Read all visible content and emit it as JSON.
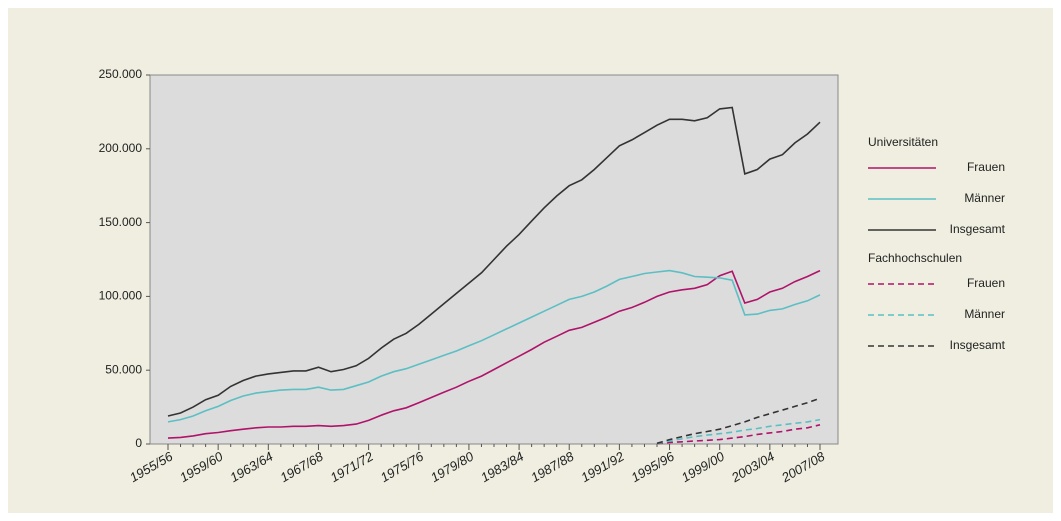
{
  "chart_data": {
    "type": "line",
    "categories": [
      "1955/56",
      null,
      null,
      null,
      "1959/60",
      null,
      null,
      null,
      "1963/64",
      null,
      null,
      null,
      "1967/68",
      null,
      null,
      null,
      "1971/72",
      null,
      null,
      null,
      "1975/76",
      null,
      null,
      null,
      "1979/80",
      null,
      null,
      null,
      "1983/84",
      null,
      null,
      null,
      "1987/88",
      null,
      null,
      null,
      "1991/92",
      null,
      null,
      null,
      "1995/96",
      null,
      null,
      null,
      "1999/00",
      null,
      null,
      null,
      "2003/04",
      null,
      null,
      null,
      "2007/08"
    ],
    "ylim": [
      0,
      250000
    ],
    "yticks": [
      0,
      {
        "value": 50000,
        "label": "50.000"
      },
      {
        "value": 100000,
        "label": "100.000"
      },
      {
        "value": 150000,
        "label": "150.000"
      },
      {
        "value": 200000,
        "label": "200.000"
      },
      {
        "value": 250000,
        "label": "250.000"
      }
    ],
    "series": [
      {
        "group": "Universitäten",
        "name": "Frauen",
        "color": "#b0136a",
        "dashed": false,
        "values": [
          4000,
          4500,
          5500,
          7000,
          7800,
          9000,
          10000,
          11000,
          11500,
          11500,
          12000,
          12000,
          12500,
          12000,
          12500,
          13500,
          16000,
          19500,
          22500,
          24500,
          28000,
          31500,
          35000,
          38500,
          42500,
          46000,
          50500,
          55000,
          59500,
          64000,
          69000,
          73000,
          77000,
          79000,
          82500,
          86000,
          90000,
          92500,
          96000,
          100000,
          103000,
          104500,
          105500,
          108000,
          114000,
          117000,
          95500,
          98000,
          103000,
          105500,
          110000,
          113500,
          117500
        ]
      },
      {
        "group": "Universitäten",
        "name": "Männer",
        "color": "#5bbfc4",
        "dashed": false,
        "values": [
          15000,
          16500,
          19000,
          22500,
          25500,
          29500,
          32500,
          34500,
          35500,
          36500,
          37000,
          37000,
          38500,
          36500,
          37000,
          39500,
          42000,
          46000,
          49000,
          51000,
          54000,
          57000,
          60000,
          63000,
          66500,
          70000,
          74000,
          78000,
          82000,
          86000,
          90000,
          94000,
          98000,
          100000,
          103000,
          107000,
          111500,
          113500,
          115500,
          116500,
          117500,
          116000,
          113500,
          113000,
          112500,
          111000,
          87500,
          88000,
          90500,
          91500,
          94500,
          97000,
          101000
        ]
      },
      {
        "group": "Universitäten",
        "name": "Insgesamt",
        "color": "#333333",
        "dashed": false,
        "values": [
          19000,
          21000,
          25000,
          30000,
          33000,
          39000,
          43000,
          46000,
          47500,
          48500,
          49500,
          49500,
          52000,
          49000,
          50500,
          53000,
          58000,
          65000,
          71000,
          75000,
          81000,
          88000,
          95000,
          102000,
          109000,
          116000,
          125000,
          134000,
          142000,
          151000,
          160000,
          168000,
          175000,
          179000,
          186000,
          194000,
          202000,
          206000,
          211000,
          216000,
          220000,
          220000,
          219000,
          221000,
          227000,
          228000,
          183000,
          186000,
          193000,
          196000,
          204000,
          210000,
          218000
        ]
      },
      {
        "group": "Fachhochschulen",
        "name": "Frauen",
        "color": "#b0136a",
        "dashed": true,
        "values": [
          null,
          null,
          null,
          null,
          null,
          null,
          null,
          null,
          null,
          null,
          null,
          null,
          null,
          null,
          null,
          null,
          null,
          null,
          null,
          null,
          null,
          null,
          null,
          null,
          null,
          null,
          null,
          null,
          null,
          null,
          null,
          null,
          null,
          null,
          null,
          null,
          null,
          null,
          null,
          200,
          1000,
          1500,
          2000,
          2500,
          3000,
          4000,
          5000,
          6500,
          7500,
          8500,
          10000,
          11000,
          13000
        ]
      },
      {
        "group": "Fachhochschulen",
        "name": "Männer",
        "color": "#5bbfc4",
        "dashed": true,
        "values": [
          null,
          null,
          null,
          null,
          null,
          null,
          null,
          null,
          null,
          null,
          null,
          null,
          null,
          null,
          null,
          null,
          null,
          null,
          null,
          null,
          null,
          null,
          null,
          null,
          null,
          null,
          null,
          null,
          null,
          null,
          null,
          null,
          null,
          null,
          null,
          null,
          null,
          null,
          null,
          300,
          2000,
          3500,
          5000,
          6000,
          7000,
          8000,
          9500,
          10500,
          12000,
          13000,
          14000,
          15000,
          16500
        ]
      },
      {
        "group": "Fachhochschulen",
        "name": "Insgesamt",
        "color": "#333333",
        "dashed": true,
        "values": [
          null,
          null,
          null,
          null,
          null,
          null,
          null,
          null,
          null,
          null,
          null,
          null,
          null,
          null,
          null,
          null,
          null,
          null,
          null,
          null,
          null,
          null,
          null,
          null,
          null,
          null,
          null,
          null,
          null,
          null,
          null,
          null,
          null,
          null,
          null,
          null,
          null,
          null,
          null,
          500,
          3000,
          5000,
          7000,
          8500,
          10000,
          12500,
          15000,
          18000,
          20500,
          23000,
          25500,
          28000,
          31000
        ]
      }
    ]
  }
}
